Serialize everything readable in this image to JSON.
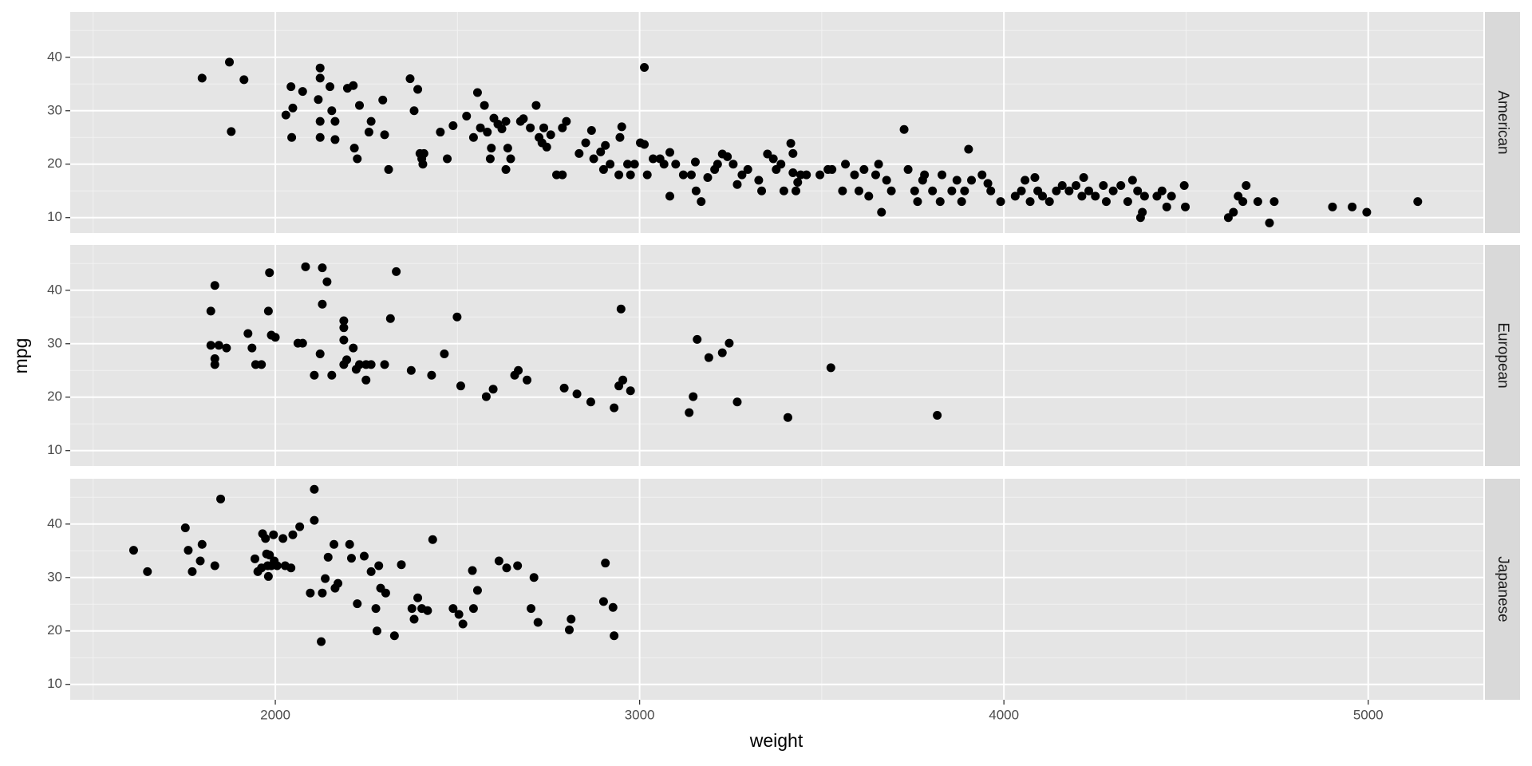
{
  "chart_data": {
    "type": "scatter",
    "xlabel": "weight",
    "ylabel": "mpg",
    "xlim": [
      1437,
      5316
    ],
    "ylim": [
      7.12,
      48.48
    ],
    "xticks": [
      2000,
      3000,
      4000,
      5000
    ],
    "yticks": [
      10,
      20,
      30,
      40
    ],
    "xminor": [
      1500,
      2500,
      3500,
      4500
    ],
    "yminor": [
      15,
      25,
      35,
      45
    ],
    "grid": true,
    "series": [
      {
        "name": "American",
        "color": "#000000",
        "x": [
          1799,
          1874,
          1914,
          1879,
          2029,
          2043,
          2048,
          2045,
          2075,
          2123,
          2123,
          2118,
          2123,
          2123,
          2150,
          2155,
          2164,
          2164,
          2198,
          2214,
          2217,
          2225,
          2231,
          2257,
          2263,
          2295,
          2300,
          2311,
          2370,
          2381,
          2391,
          2397,
          2402,
          2405,
          2408,
          2453,
          2472,
          2488,
          2525,
          2544,
          2555,
          2563,
          2574,
          2582,
          2590,
          2593,
          2600,
          2611,
          2622,
          2633,
          2638,
          2633,
          2646,
          2673,
          2681,
          2700,
          2716,
          2724,
          2732,
          2737,
          2745,
          2756,
          2772,
          2788,
          2788,
          2799,
          2834,
          2852,
          2868,
          2874,
          2893,
          2901,
          2906,
          2919,
          2943,
          2946,
          2951,
          2967,
          2975,
          2986,
          3002,
          3013,
          3013,
          3021,
          3037,
          3056,
          3067,
          3083,
          3083,
          3099,
          3120,
          3142,
          3153,
          3155,
          3169,
          3187,
          3206,
          3214,
          3227,
          3241,
          3257,
          3268,
          3281,
          3297,
          3327,
          3335,
          3351,
          3367,
          3375,
          3388,
          3396,
          3415,
          3421,
          3421,
          3429,
          3434,
          3442,
          3458,
          3495,
          3517,
          3528,
          3557,
          3565,
          3590,
          3602,
          3616,
          3629,
          3648,
          3656,
          3664,
          3678,
          3691,
          3726,
          3737,
          3755,
          3763,
          3777,
          3782,
          3804,
          3825,
          3830,
          3857,
          3871,
          3884,
          3892,
          3903,
          3911,
          3940,
          3956,
          3964,
          3991,
          4031,
          4048,
          4058,
          4072,
          4085,
          4093,
          4106,
          4125,
          4144,
          4160,
          4179,
          4198,
          4214,
          4219,
          4233,
          4251,
          4273,
          4281,
          4300,
          4321,
          4340,
          4353,
          4367,
          4375,
          4380,
          4386,
          4420,
          4434,
          4447,
          4460,
          4495,
          4498,
          4616,
          4630,
          4643,
          4656,
          4665,
          4697,
          4729,
          4742,
          4902,
          4956,
          4996,
          5136
        ],
        "values": [
          36.1,
          39.1,
          35.8,
          26.1,
          29.2,
          34.5,
          30.5,
          25,
          33.6,
          38,
          36.1,
          32.1,
          28,
          25,
          34.5,
          30,
          28,
          24.6,
          34.2,
          34.7,
          23,
          21,
          31,
          26,
          28,
          32,
          25.5,
          19,
          36,
          30,
          34,
          22,
          21,
          20,
          22,
          26,
          21,
          27.2,
          29,
          25,
          33.4,
          26.8,
          31,
          26,
          21,
          23,
          28.6,
          27.5,
          26.6,
          28,
          23,
          19,
          21,
          28,
          28.5,
          26.8,
          31,
          25,
          24,
          26.8,
          23.2,
          25.5,
          18,
          18,
          26.8,
          28,
          22,
          24,
          26.3,
          21,
          22.3,
          19,
          23.5,
          20,
          18,
          25,
          27,
          20,
          18,
          20,
          24,
          23.7,
          38.1,
          18,
          21,
          21,
          20,
          14,
          22.2,
          20,
          18,
          18,
          20.4,
          15,
          13,
          17.5,
          19,
          20,
          21.9,
          21.4,
          20,
          16.2,
          18,
          19,
          17,
          15,
          21.9,
          21,
          19,
          20,
          15,
          23.9,
          22,
          18.4,
          15,
          16.6,
          18,
          18,
          18,
          19,
          19,
          15,
          20,
          18,
          15,
          19,
          14,
          18,
          20,
          11,
          17,
          15,
          26.5,
          19,
          15,
          13,
          17,
          18,
          15,
          13,
          18,
          15,
          17,
          13,
          15,
          22.8,
          17,
          18,
          16.4,
          15,
          13,
          14,
          15,
          17,
          13,
          17.5,
          15,
          14,
          13,
          15,
          16,
          15,
          16,
          14,
          17.5,
          15,
          14,
          16,
          13,
          15,
          16,
          13,
          17,
          15,
          10,
          11,
          14,
          14,
          15,
          12,
          14,
          16,
          12,
          10,
          11,
          14,
          13,
          16,
          13,
          9,
          13,
          12,
          12,
          11,
          13
        ]
      },
      {
        "name": "European",
        "color": "#000000",
        "x": [
          1823,
          1834,
          1823,
          1834,
          1834,
          1845,
          1866,
          1925,
          1936,
          1946,
          1962,
          1981,
          1984,
          1989,
          2000,
          2062,
          2075,
          2083,
          2107,
          2123,
          2129,
          2129,
          2142,
          2155,
          2188,
          2188,
          2188,
          2188,
          2196,
          2214,
          2222,
          2231,
          2249,
          2249,
          2263,
          2300,
          2316,
          2332,
          2373,
          2429,
          2464,
          2499,
          2509,
          2579,
          2598,
          2657,
          2667,
          2691,
          2793,
          2828,
          2866,
          2930,
          2943,
          2949,
          2954,
          2975,
          3136,
          3147,
          3158,
          3190,
          3227,
          3246,
          3268,
          3407,
          3525,
          3817
        ],
        "values": [
          36.1,
          40.9,
          29.7,
          27.2,
          26.1,
          29.7,
          29.2,
          31.9,
          29.2,
          26.1,
          26.1,
          36.1,
          43.3,
          31.6,
          31.2,
          30.1,
          30.1,
          44.4,
          24.1,
          28.1,
          44.2,
          37.4,
          41.6,
          24.1,
          34.3,
          33,
          30.7,
          26.1,
          27,
          29.2,
          25.2,
          26.1,
          23.2,
          26.1,
          26.1,
          26.1,
          34.7,
          43.5,
          25,
          24.1,
          28.1,
          35,
          22.1,
          20.1,
          21.5,
          24.1,
          25,
          23.2,
          21.7,
          20.6,
          19.1,
          18,
          22.1,
          36.5,
          23.2,
          21.2,
          17.1,
          20.1,
          30.8,
          27.4,
          28.3,
          30.1,
          19.1,
          16.2,
          25.5,
          16.6
        ]
      },
      {
        "name": "Japanese",
        "color": "#000000",
        "x": [
          1611,
          1649,
          1753,
          1761,
          1772,
          1794,
          1799,
          1834,
          1850,
          1944,
          1952,
          1962,
          1965,
          1973,
          1976,
          1979,
          1981,
          1984,
          1989,
          1995,
          1997,
          2005,
          2021,
          2027,
          2048,
          2043,
          2067,
          2096,
          2107,
          2107,
          2126,
          2129,
          2137,
          2145,
          2161,
          2164,
          2172,
          2204,
          2209,
          2225,
          2244,
          2263,
          2276,
          2279,
          2284,
          2289,
          2303,
          2327,
          2346,
          2375,
          2381,
          2391,
          2402,
          2418,
          2432,
          2488,
          2504,
          2515,
          2541,
          2544,
          2555,
          2614,
          2635,
          2665,
          2702,
          2710,
          2721,
          2807,
          2812,
          2901,
          2906,
          2927,
          2930
        ],
        "values": [
          35.1,
          31.1,
          39.3,
          35.1,
          31.1,
          33.1,
          36.2,
          32.2,
          44.7,
          33.5,
          31.1,
          31.8,
          38.2,
          37.3,
          34.4,
          32.2,
          30.2,
          34.2,
          32.2,
          38,
          33.1,
          32.2,
          37.3,
          32.2,
          38,
          31.8,
          39.5,
          27.1,
          46.5,
          40.7,
          18,
          27.1,
          29.8,
          33.8,
          36.2,
          28,
          28.9,
          36.2,
          33.6,
          25.1,
          34,
          31.1,
          24.2,
          20,
          32.2,
          28,
          27.1,
          19.1,
          32.4,
          24.2,
          22.2,
          26.2,
          24.2,
          23.8,
          37.1,
          24.2,
          23.1,
          21.3,
          31.3,
          24.2,
          27.6,
          33.1,
          31.8,
          32.2,
          24.2,
          30,
          21.6,
          20.2,
          22.2,
          25.5,
          32.7,
          24.4,
          19.1
        ]
      }
    ]
  }
}
